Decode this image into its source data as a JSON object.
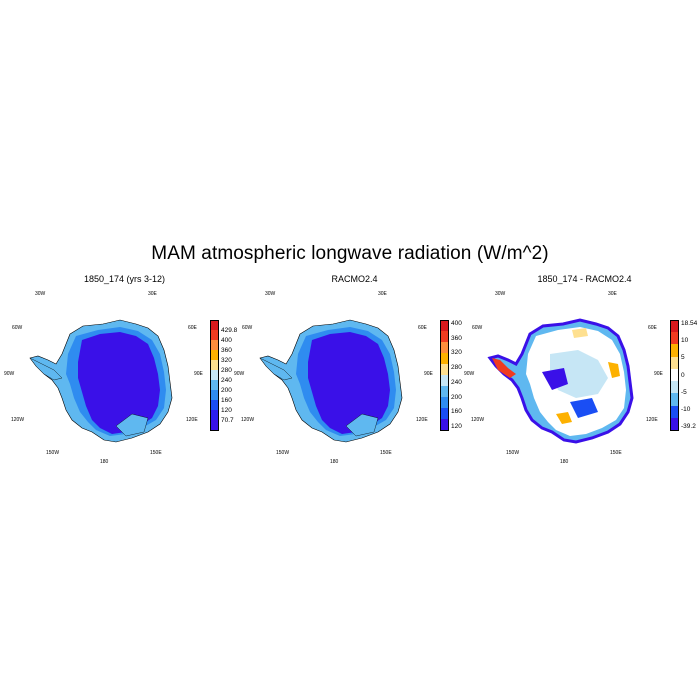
{
  "title": "MAM atmospheric longwave radiation (W/m^2)",
  "panels": [
    {
      "title": "1850_174 (yrs 3-12)",
      "lon_labels": {
        "a30w": "30W",
        "a30e": "30E",
        "a60w": "60W",
        "a60e": "60E",
        "a90w": "90W",
        "a90e": "90E",
        "a120w": "120W",
        "a120e": "120E",
        "a150w": "150W",
        "a150e": "150E",
        "a180": "180"
      },
      "colorbar": {
        "labels": [
          "429.8",
          "400",
          "360",
          "320",
          "280",
          "240",
          "200",
          "160",
          "120",
          "70.7"
        ],
        "colors": [
          "#d7191c",
          "#f03b20",
          "#fd8d3c",
          "#fdb100",
          "#fee090",
          "#c6e6f5",
          "#5fb8f0",
          "#2f8cf0",
          "#1a4ef4",
          "#2a1ef0",
          "#3a10e8"
        ]
      }
    },
    {
      "title": "RACMO2.4",
      "lon_labels": {
        "a30w": "30W",
        "a30e": "30E",
        "a60w": "60W",
        "a60e": "60E",
        "a90w": "90W",
        "a90e": "90E",
        "a120w": "120W",
        "a120e": "120E",
        "a150w": "150W",
        "a150e": "150E",
        "a180": "180"
      },
      "colorbar": {
        "labels": [
          "400",
          "360",
          "320",
          "280",
          "240",
          "200",
          "160",
          "120"
        ],
        "colors": [
          "#d7191c",
          "#f03b20",
          "#fd8d3c",
          "#fdb100",
          "#fee090",
          "#c6e6f5",
          "#5fb8f0",
          "#2f8cf0",
          "#1a4ef4",
          "#3a10e8"
        ]
      }
    },
    {
      "title": "1850_174 - RACMO2.4",
      "lon_labels": {
        "a30w": "30W",
        "a30e": "30E",
        "a60w": "60W",
        "a60e": "60E",
        "a90w": "90W",
        "a90e": "90E",
        "a120w": "120W",
        "a120e": "120E",
        "a150w": "150W",
        "a150e": "150E",
        "a180": "180"
      },
      "colorbar": {
        "labels": [
          "18.54",
          "10",
          "5",
          "0",
          "-5",
          "-10",
          "-39.2"
        ],
        "colors": [
          "#d7191c",
          "#f03b20",
          "#fdb100",
          "#fee090",
          "#ffffff",
          "#c6e6f5",
          "#5fb8f0",
          "#1a4ef4",
          "#3a10e8"
        ]
      }
    }
  ]
}
